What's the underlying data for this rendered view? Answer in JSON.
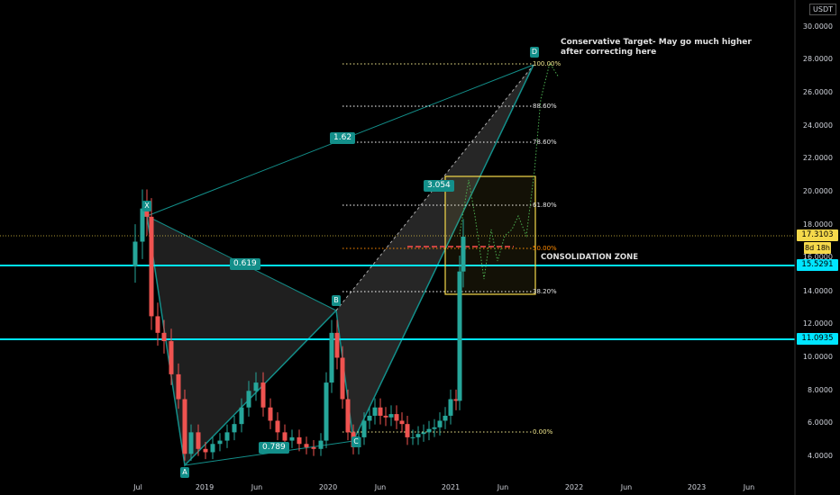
{
  "currency": "USDT",
  "price_axis": {
    "labels": [
      "30.0000",
      "28.0000",
      "26.0000",
      "24.0000",
      "22.0000",
      "20.0000",
      "18.0000",
      "16.0000",
      "14.0000",
      "12.0000",
      "10.0000",
      "8.0000",
      "6.0000",
      "4.0000"
    ]
  },
  "time_axis": {
    "labels": [
      "Jul",
      "2019",
      "Jun",
      "2020",
      "Jun",
      "2021",
      "Jun",
      "2022",
      "Jun",
      "2023",
      "Jun"
    ]
  },
  "badges": {
    "last_price": "17.3103",
    "countdown": "8d 18h",
    "line_upper": "15.5291",
    "line_lower": "11.0935"
  },
  "pattern": {
    "points": [
      "X",
      "A",
      "B",
      "C",
      "D"
    ],
    "ratios": {
      "xb": "0.619",
      "xd": "1.62",
      "bd": "3.054",
      "ac": "0.789"
    }
  },
  "fib_levels": [
    "100.00%",
    "88.60%",
    "78.60%",
    "61.80%",
    "50.00%",
    "38.20%",
    "0.00%"
  ],
  "annotations": {
    "target_note_line1": "Conservative Target- May go much higher",
    "target_note_line2": "after correcting here",
    "zone_label": "CONSOLIDATION ZONE"
  },
  "colors": {
    "background": "#000000",
    "up_candle": "#26a69a",
    "down_candle": "#ef5350",
    "horizontal_lines": "#00e5ff",
    "pattern_line": "#138f8a",
    "fib_lines": "#f0e68c",
    "zone_box": "#f5d94b",
    "last_price_badge": "#f5d94b"
  }
}
